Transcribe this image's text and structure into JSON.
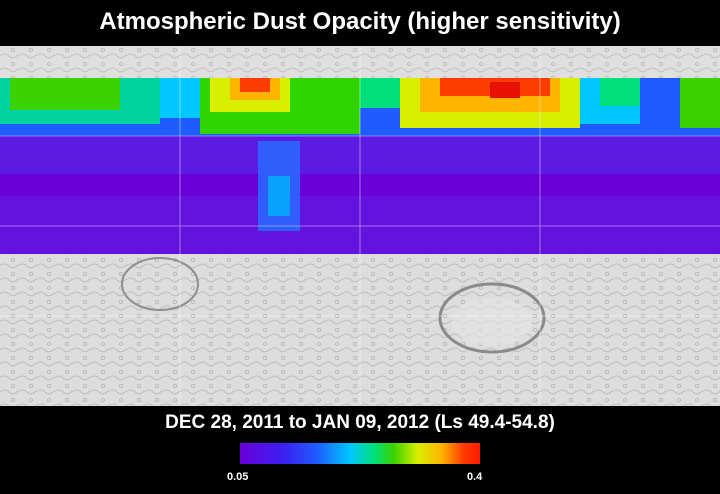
{
  "title": "Atmospheric Dust Opacity (higher sensitivity)",
  "date_range": "DEC 28, 2011 to JAN 09, 2012 (Ls 49.4-54.8)",
  "colorbar": {
    "min_label": "0.05",
    "max_label": "0.4",
    "min_value": 0.05,
    "max_value": 0.4
  },
  "colors": {
    "background": "#000000",
    "terrain": "#cfcfcf",
    "low_opacity": "#6a00d8",
    "high_opacity": "#ff1a00"
  }
}
